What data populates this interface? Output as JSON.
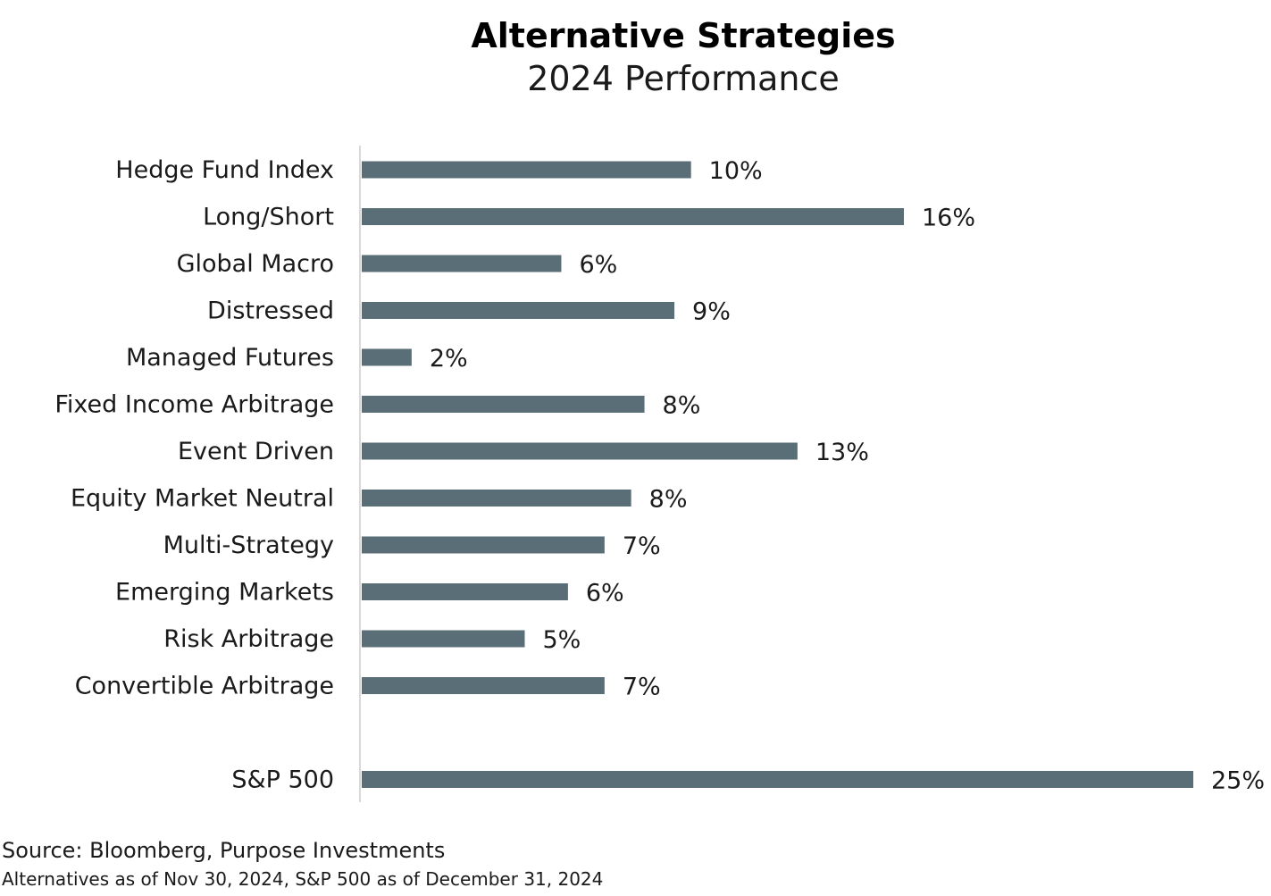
{
  "chart_data": {
    "type": "bar",
    "orientation": "horizontal",
    "title": "Alternative Strategies",
    "subtitle": "2024 Performance",
    "categories": [
      "Hedge Fund Index",
      "Long/Short",
      "Global Macro",
      "Distressed",
      "Managed Futures",
      "Fixed Income Arbitrage",
      "Event Driven",
      "Equity Market Neutral",
      "Multi-Strategy",
      "Emerging Markets",
      "Risk Arbitrage",
      "Convertible Arbitrage",
      "S&P 500"
    ],
    "values": [
      9.9,
      16.3,
      6.0,
      9.4,
      1.5,
      8.5,
      13.1,
      8.1,
      7.3,
      6.2,
      4.9,
      7.3,
      25.0
    ],
    "data_labels": [
      "10%",
      "16%",
      "6%",
      "9%",
      "2%",
      "8%",
      "13%",
      "8%",
      "7%",
      "6%",
      "5%",
      "7%",
      "25%"
    ],
    "xlim": [
      0,
      25
    ],
    "grid": false,
    "legend": "none",
    "bar_color": "#5a6e77",
    "axis_color": "#d9d9d9"
  },
  "footer": {
    "source": "Source: Bloomberg, Purpose Investments",
    "note": "Alternatives as of Nov 30, 2024, S&P 500 as of December 31, 2024"
  }
}
